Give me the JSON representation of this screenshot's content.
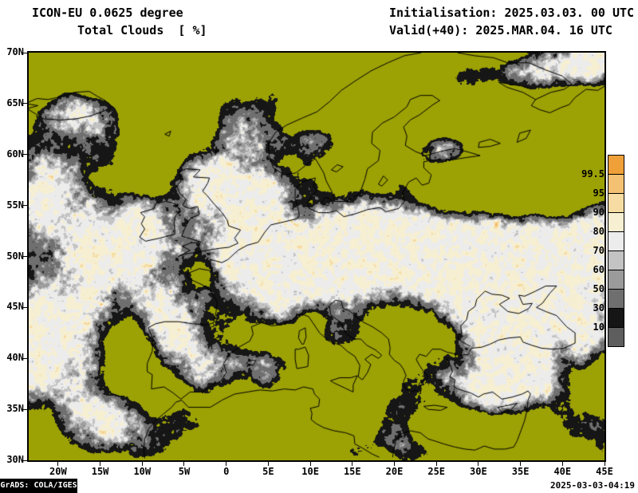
{
  "header": {
    "model": "ICON-EU 0.0625 degree",
    "variable": "Total Clouds  [ %]",
    "initialisation": "Initialisation: 2025.03.03. 00 UTC",
    "valid": "Valid(+40): 2025.MAR.04. 16 UTC"
  },
  "axes": {
    "lat_labels": [
      "70N",
      "65N",
      "60N",
      "55N",
      "50N",
      "45N",
      "40N",
      "35N",
      "30N"
    ],
    "lon_labels": [
      "20W",
      "15W",
      "10W",
      "5W",
      "0",
      "5E",
      "10E",
      "15E",
      "20E",
      "25E",
      "30E",
      "35E",
      "40E",
      "45E"
    ]
  },
  "legend": {
    "labels": [
      "99.5",
      "95",
      "90",
      "80",
      "70",
      "60",
      "50",
      "30",
      "10"
    ],
    "colors_top_to_bottom": [
      "#efa038",
      "#f4c172",
      "#f6dca2",
      "#f6efd2",
      "#ececec",
      "#c3c3c3",
      "#9b9b9b",
      "#6f6f6f",
      "#161616",
      "#5e5e5e"
    ]
  },
  "map": {
    "clear_color": "#9ca104",
    "palette": [
      "#9ca104",
      "#161616",
      "#6f6f6f",
      "#9b9b9b",
      "#c3c3c3",
      "#ececec",
      "#f6efd2",
      "#f6dca2",
      "#f4c172",
      "#efa038"
    ],
    "levels": [
      10,
      30,
      50,
      60,
      70,
      80,
      90,
      95,
      99.5
    ]
  },
  "footer": {
    "credit": "GrADS: COLA/IGES",
    "generated": "2025-03-03-04:19"
  },
  "chart_data": {
    "type": "heatmap",
    "title": "Total Clouds [ %]",
    "model": "ICON-EU 0.0625 degree",
    "init_time": "2025.03.03. 00 UTC",
    "valid_time": "2025.MAR.04. 16 UTC",
    "forecast_hour": 40,
    "units": "%",
    "lon_range": [
      "20W",
      "45E"
    ],
    "lat_range": [
      "30N",
      "70N"
    ],
    "levels": [
      10,
      30,
      50,
      60,
      70,
      80,
      90,
      95,
      99.5
    ],
    "legend_position": "right"
  }
}
